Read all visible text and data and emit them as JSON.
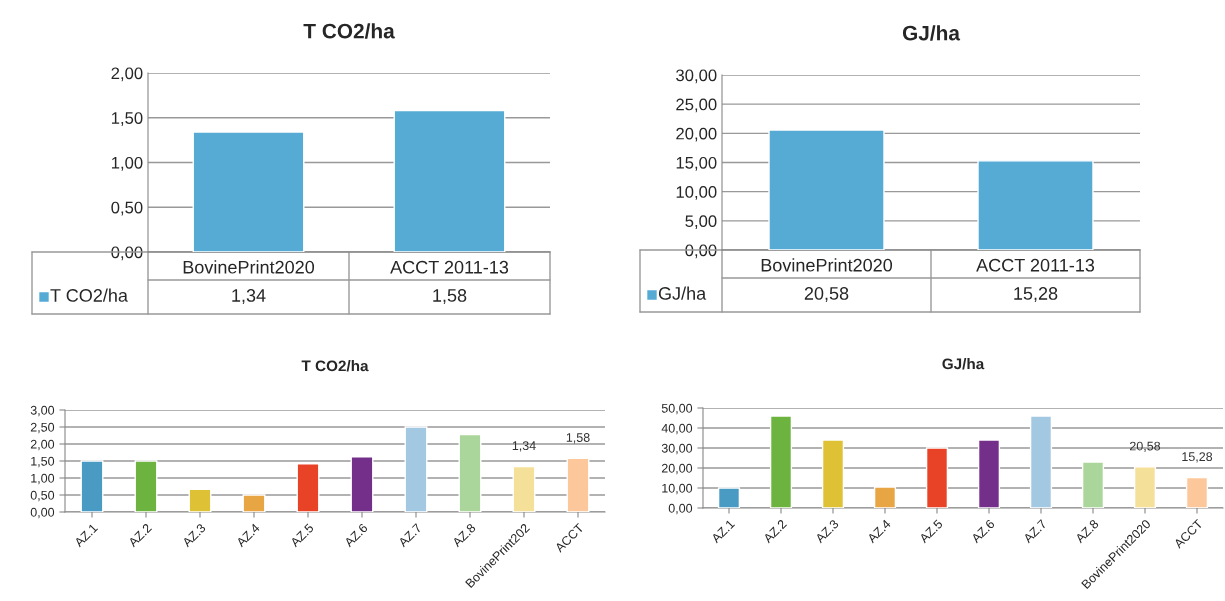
{
  "chart_data": [
    {
      "type": "bar",
      "title": "T CO2/ha",
      "categories": [
        "BovinePrint2020",
        "ACCT 2011-13"
      ],
      "legend": "bottom",
      "grid": "y",
      "series": [
        {
          "name": "T CO2/ha",
          "color": "#56abd5",
          "values": [
            1.34,
            1.58
          ],
          "value_labels": [
            "1,34",
            "1,58"
          ]
        }
      ],
      "ylim": [
        0,
        2
      ],
      "yticks": [
        {
          "value": 0,
          "label": "0,00"
        },
        {
          "value": 0.5,
          "label": "0,50"
        },
        {
          "value": 1,
          "label": "1,00"
        },
        {
          "value": 1.5,
          "label": "1,50"
        },
        {
          "value": 2,
          "label": "2,00"
        }
      ]
    },
    {
      "type": "bar",
      "title": "GJ/ha",
      "categories": [
        "BovinePrint2020",
        "ACCT 2011-13"
      ],
      "legend": "bottom",
      "grid": "y",
      "series": [
        {
          "name": "GJ/ha",
          "color": "#56abd5",
          "values": [
            20.58,
            15.28
          ],
          "value_labels": [
            "20,58",
            "15,28"
          ]
        }
      ],
      "ylim": [
        0,
        30
      ],
      "yticks": [
        {
          "value": 0,
          "label": "0,00"
        },
        {
          "value": 5,
          "label": "5,00"
        },
        {
          "value": 10,
          "label": "10,00"
        },
        {
          "value": 15,
          "label": "15,00"
        },
        {
          "value": 20,
          "label": "20,00"
        },
        {
          "value": 25,
          "label": "25,00"
        },
        {
          "value": 30,
          "label": "30,00"
        }
      ]
    },
    {
      "type": "bar",
      "title": "T CO2/ha",
      "categories": [
        "AZ.1",
        "AZ.2",
        "AZ.3",
        "AZ.4",
        "AZ.5",
        "AZ.6",
        "AZ.7",
        "AZ.8",
        "BovinePrint202",
        "ACCT"
      ],
      "grid": "y",
      "series": [
        {
          "colors": [
            "#4a9bc4",
            "#6db33f",
            "#dfc135",
            "#e8a543",
            "#e84326",
            "#742f8a",
            "#a3c8e2",
            "#abd69b",
            "#f5e09a",
            "#fcc89b"
          ],
          "values": [
            1.5,
            1.5,
            0.67,
            0.5,
            1.42,
            1.62,
            2.5,
            2.28,
            1.34,
            1.58
          ],
          "value_labels": [
            null,
            null,
            null,
            null,
            null,
            null,
            null,
            null,
            "1,34",
            "1,58"
          ]
        }
      ],
      "ylim": [
        0,
        3
      ],
      "yticks": [
        {
          "value": 0,
          "label": "0,00"
        },
        {
          "value": 0.5,
          "label": "0,50"
        },
        {
          "value": 1,
          "label": "1,00"
        },
        {
          "value": 1.5,
          "label": "1,50"
        },
        {
          "value": 2,
          "label": "2,00"
        },
        {
          "value": 2.5,
          "label": "2,50"
        },
        {
          "value": 3,
          "label": "3,00"
        }
      ]
    },
    {
      "type": "bar",
      "title": "GJ/ha",
      "categories": [
        "AZ.1",
        "AZ.2",
        "AZ.3",
        "AZ.4",
        "AZ.5",
        "AZ.6",
        "AZ.7",
        "AZ.8",
        "BovinePrint2020",
        "ACCT"
      ],
      "grid": "y",
      "series": [
        {
          "colors": [
            "#4a9bc4",
            "#6db33f",
            "#dfc135",
            "#e8a543",
            "#e84326",
            "#742f8a",
            "#a3c8e2",
            "#abd69b",
            "#f5e09a",
            "#fcc89b"
          ],
          "values": [
            10,
            46,
            34,
            10.5,
            30,
            34,
            46,
            23,
            20.58,
            15.28
          ],
          "value_labels": [
            null,
            null,
            null,
            null,
            null,
            null,
            null,
            null,
            "20,58",
            "15,28"
          ]
        }
      ],
      "ylim": [
        0,
        50
      ],
      "yticks": [
        {
          "value": 0,
          "label": "0,00"
        },
        {
          "value": 10,
          "label": "10,00"
        },
        {
          "value": 20,
          "label": "20,00"
        },
        {
          "value": 30,
          "label": "30,00"
        },
        {
          "value": 40,
          "label": "40,00"
        },
        {
          "value": 50,
          "label": "50,00"
        }
      ]
    }
  ]
}
